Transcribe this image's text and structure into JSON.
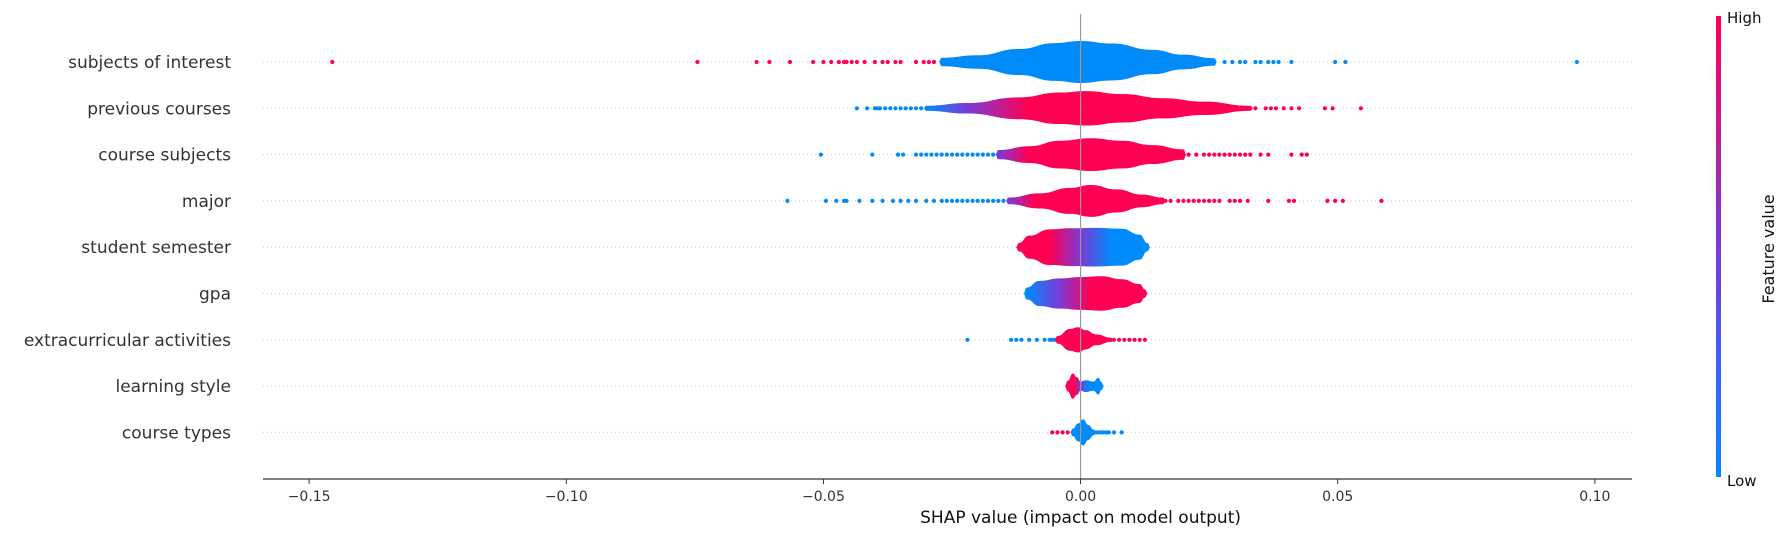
{
  "colors": {
    "low": "#008bfb",
    "mid": "#7b3ad6",
    "high": "#ff0052",
    "axis": "#333333",
    "zero_line": "#999999",
    "row_line": "#cccccc"
  },
  "chart_data": {
    "type": "violin",
    "xlabel": "SHAP value (impact on model output)",
    "xlim": [
      -0.158,
      0.108
    ],
    "xticks": [
      -0.15,
      -0.1,
      -0.05,
      0.0,
      0.05,
      0.1
    ],
    "xtick_labels": [
      "−0.15",
      "−0.10",
      "−0.05",
      "0.00",
      "0.05",
      "0.10"
    ],
    "colorbar": {
      "title": "Feature value",
      "high_label": "High",
      "low_label": "Low"
    },
    "features": [
      {
        "name": "subjects of interest",
        "profile": [
          [
            -0.027,
            0.2
          ],
          [
            -0.02,
            0.32
          ],
          [
            -0.012,
            0.62
          ],
          [
            -0.005,
            0.9
          ],
          [
            0.0,
            1.0
          ],
          [
            0.006,
            0.88
          ],
          [
            0.014,
            0.58
          ],
          [
            0.02,
            0.35
          ],
          [
            0.026,
            0.18
          ]
        ],
        "colors": [
          [
            -0.027,
            "low"
          ],
          [
            0.026,
            "low"
          ]
        ],
        "outliers": [
          [
            -0.1455,
            "high"
          ],
          [
            -0.0745,
            "high"
          ],
          [
            -0.063,
            "high"
          ],
          [
            -0.0605,
            "high"
          ],
          [
            -0.0565,
            "high"
          ],
          [
            -0.052,
            "high"
          ],
          [
            -0.05,
            "high"
          ],
          [
            -0.0485,
            "high"
          ],
          [
            -0.047,
            "high"
          ],
          [
            -0.046,
            "high"
          ],
          [
            -0.0455,
            "high"
          ],
          [
            -0.0445,
            "high"
          ],
          [
            -0.0435,
            "high"
          ],
          [
            -0.042,
            "high"
          ],
          [
            -0.04,
            "high"
          ],
          [
            -0.0385,
            "high"
          ],
          [
            -0.0375,
            "high"
          ],
          [
            -0.036,
            "high"
          ],
          [
            -0.035,
            "high"
          ],
          [
            -0.032,
            "high"
          ],
          [
            -0.0305,
            "high"
          ],
          [
            -0.0295,
            "high"
          ],
          [
            -0.0285,
            "high"
          ],
          [
            0.028,
            "low"
          ],
          [
            0.0295,
            "low"
          ],
          [
            0.031,
            "low"
          ],
          [
            0.032,
            "low"
          ],
          [
            0.034,
            "low"
          ],
          [
            0.035,
            "low"
          ],
          [
            0.0365,
            "low"
          ],
          [
            0.0375,
            "low"
          ],
          [
            0.0385,
            "low"
          ],
          [
            0.041,
            "low"
          ],
          [
            0.0495,
            "low"
          ],
          [
            0.0515,
            "low"
          ],
          [
            0.0965,
            "low"
          ]
        ]
      },
      {
        "name": "previous courses",
        "profile": [
          [
            -0.03,
            0.12
          ],
          [
            -0.022,
            0.25
          ],
          [
            -0.012,
            0.52
          ],
          [
            -0.004,
            0.75
          ],
          [
            0.001,
            0.82
          ],
          [
            0.008,
            0.68
          ],
          [
            0.016,
            0.48
          ],
          [
            0.024,
            0.32
          ],
          [
            0.033,
            0.12
          ]
        ],
        "colors": [
          [
            -0.03,
            "low"
          ],
          [
            -0.022,
            "mid"
          ],
          [
            -0.01,
            "high"
          ],
          [
            0.033,
            "high"
          ]
        ],
        "outliers": [
          [
            -0.0435,
            "low"
          ],
          [
            -0.0415,
            "low"
          ],
          [
            -0.04,
            "low"
          ],
          [
            -0.0395,
            "low"
          ],
          [
            -0.039,
            "low"
          ],
          [
            -0.038,
            "low"
          ],
          [
            -0.037,
            "low"
          ],
          [
            -0.036,
            "low"
          ],
          [
            -0.035,
            "low"
          ],
          [
            -0.034,
            "low"
          ],
          [
            -0.033,
            "low"
          ],
          [
            -0.032,
            "low"
          ],
          [
            -0.031,
            "low"
          ],
          [
            0.034,
            "high"
          ],
          [
            0.036,
            "high"
          ],
          [
            0.037,
            "high"
          ],
          [
            0.038,
            "high"
          ],
          [
            0.0395,
            "high"
          ],
          [
            0.041,
            "high"
          ],
          [
            0.0425,
            "high"
          ],
          [
            0.0475,
            "high"
          ],
          [
            0.049,
            "high"
          ],
          [
            0.0545,
            "high"
          ]
        ]
      },
      {
        "name": "course subjects",
        "profile": [
          [
            -0.016,
            0.22
          ],
          [
            -0.01,
            0.4
          ],
          [
            -0.004,
            0.66
          ],
          [
            0.002,
            0.78
          ],
          [
            0.008,
            0.66
          ],
          [
            0.014,
            0.45
          ],
          [
            0.02,
            0.25
          ]
        ],
        "colors": [
          [
            -0.016,
            "mid"
          ],
          [
            -0.01,
            "high"
          ],
          [
            0.02,
            "high"
          ]
        ],
        "outliers": [
          [
            -0.0505,
            "low"
          ],
          [
            -0.0405,
            "low"
          ],
          [
            -0.0355,
            "low"
          ],
          [
            -0.0345,
            "low"
          ],
          [
            -0.032,
            "low"
          ],
          [
            -0.031,
            "low"
          ],
          [
            -0.03,
            "low"
          ],
          [
            -0.029,
            "low"
          ],
          [
            -0.028,
            "low"
          ],
          [
            -0.027,
            "low"
          ],
          [
            -0.026,
            "low"
          ],
          [
            -0.025,
            "low"
          ],
          [
            -0.024,
            "low"
          ],
          [
            -0.023,
            "low"
          ],
          [
            -0.022,
            "low"
          ],
          [
            -0.021,
            "low"
          ],
          [
            -0.02,
            "low"
          ],
          [
            -0.019,
            "low"
          ],
          [
            -0.018,
            "low"
          ],
          [
            -0.017,
            "low"
          ],
          [
            0.021,
            "high"
          ],
          [
            0.0225,
            "high"
          ],
          [
            0.024,
            "high"
          ],
          [
            0.025,
            "high"
          ],
          [
            0.026,
            "high"
          ],
          [
            0.027,
            "high"
          ],
          [
            0.028,
            "high"
          ],
          [
            0.029,
            "high"
          ],
          [
            0.03,
            "high"
          ],
          [
            0.031,
            "high"
          ],
          [
            0.032,
            "high"
          ],
          [
            0.033,
            "high"
          ],
          [
            0.035,
            "high"
          ],
          [
            0.0365,
            "high"
          ],
          [
            0.041,
            "high"
          ],
          [
            0.043,
            "high"
          ],
          [
            0.044,
            "high"
          ]
        ]
      },
      {
        "name": "major",
        "profile": [
          [
            -0.014,
            0.16
          ],
          [
            -0.008,
            0.36
          ],
          [
            -0.002,
            0.62
          ],
          [
            0.002,
            0.76
          ],
          [
            0.007,
            0.55
          ],
          [
            0.012,
            0.3
          ],
          [
            0.016,
            0.16
          ]
        ],
        "colors": [
          [
            -0.014,
            "mid"
          ],
          [
            -0.009,
            "high"
          ],
          [
            0.016,
            "high"
          ]
        ],
        "outliers": [
          [
            -0.057,
            "low"
          ],
          [
            -0.0495,
            "low"
          ],
          [
            -0.0475,
            "low"
          ],
          [
            -0.046,
            "low"
          ],
          [
            -0.0455,
            "low"
          ],
          [
            -0.043,
            "low"
          ],
          [
            -0.0405,
            "low"
          ],
          [
            -0.0385,
            "low"
          ],
          [
            -0.0365,
            "low"
          ],
          [
            -0.035,
            "low"
          ],
          [
            -0.0335,
            "low"
          ],
          [
            -0.032,
            "low"
          ],
          [
            -0.03,
            "low"
          ],
          [
            -0.0285,
            "low"
          ],
          [
            -0.027,
            "low"
          ],
          [
            -0.026,
            "low"
          ],
          [
            -0.025,
            "low"
          ],
          [
            -0.024,
            "low"
          ],
          [
            -0.023,
            "low"
          ],
          [
            -0.022,
            "low"
          ],
          [
            -0.021,
            "low"
          ],
          [
            -0.02,
            "low"
          ],
          [
            -0.019,
            "low"
          ],
          [
            -0.018,
            "low"
          ],
          [
            -0.017,
            "low"
          ],
          [
            -0.016,
            "low"
          ],
          [
            -0.015,
            "low"
          ],
          [
            0.0165,
            "high"
          ],
          [
            0.0175,
            "high"
          ],
          [
            0.019,
            "high"
          ],
          [
            0.02,
            "high"
          ],
          [
            0.021,
            "high"
          ],
          [
            0.022,
            "high"
          ],
          [
            0.023,
            "high"
          ],
          [
            0.024,
            "high"
          ],
          [
            0.025,
            "high"
          ],
          [
            0.026,
            "high"
          ],
          [
            0.027,
            "high"
          ],
          [
            0.029,
            "high"
          ],
          [
            0.03,
            "high"
          ],
          [
            0.031,
            "high"
          ],
          [
            0.0325,
            "high"
          ],
          [
            0.0365,
            "high"
          ],
          [
            0.0405,
            "high"
          ],
          [
            0.0415,
            "high"
          ],
          [
            0.048,
            "high"
          ],
          [
            0.0495,
            "high"
          ],
          [
            0.051,
            "high"
          ],
          [
            0.0585,
            "high"
          ]
        ]
      },
      {
        "name": "student semester",
        "profile": [
          [
            -0.012,
            0.2
          ],
          [
            -0.01,
            0.55
          ],
          [
            -0.006,
            0.85
          ],
          [
            -0.002,
            0.9
          ],
          [
            0.003,
            0.92
          ],
          [
            0.008,
            0.88
          ],
          [
            0.0115,
            0.6
          ],
          [
            0.013,
            0.2
          ]
        ],
        "colors": [
          [
            -0.012,
            "high"
          ],
          [
            -0.006,
            "high"
          ],
          [
            0.0,
            "mid"
          ],
          [
            0.006,
            "low"
          ],
          [
            0.013,
            "low"
          ]
        ],
        "outliers": []
      },
      {
        "name": "gpa",
        "profile": [
          [
            -0.0105,
            0.28
          ],
          [
            -0.008,
            0.6
          ],
          [
            -0.004,
            0.72
          ],
          [
            0.0,
            0.78
          ],
          [
            0.004,
            0.82
          ],
          [
            0.008,
            0.68
          ],
          [
            0.0115,
            0.45
          ],
          [
            0.0125,
            0.2
          ]
        ],
        "colors": [
          [
            -0.0105,
            "low"
          ],
          [
            -0.004,
            "mid"
          ],
          [
            0.002,
            "high"
          ],
          [
            0.0125,
            "high"
          ]
        ],
        "outliers": []
      },
      {
        "name": "extracurricular activities",
        "profile": [
          [
            -0.0045,
            0.18
          ],
          [
            -0.002,
            0.52
          ],
          [
            -0.0005,
            0.6
          ],
          [
            0.001,
            0.46
          ],
          [
            0.003,
            0.26
          ],
          [
            0.006,
            0.1
          ]
        ],
        "colors": [
          [
            -0.0045,
            "high"
          ],
          [
            0.006,
            "high"
          ]
        ],
        "outliers": [
          [
            -0.022,
            "low"
          ],
          [
            -0.0135,
            "low"
          ],
          [
            -0.0125,
            "low"
          ],
          [
            -0.0115,
            "low"
          ],
          [
            -0.01,
            "low"
          ],
          [
            -0.0085,
            "low"
          ],
          [
            -0.007,
            "low"
          ],
          [
            -0.006,
            "low"
          ],
          [
            -0.0055,
            "low"
          ],
          [
            -0.005,
            "low"
          ],
          [
            0.0065,
            "high"
          ],
          [
            0.0075,
            "high"
          ],
          [
            0.0085,
            "high"
          ],
          [
            0.0095,
            "high"
          ],
          [
            0.0105,
            "high"
          ],
          [
            0.0115,
            "high"
          ],
          [
            0.0125,
            "high"
          ]
        ]
      },
      {
        "name": "learning style",
        "profile": [
          [
            -0.0025,
            0.25
          ],
          [
            -0.0015,
            0.6
          ],
          [
            -0.0007,
            0.42
          ],
          [
            0.0,
            0.22
          ],
          [
            0.001,
            0.28
          ],
          [
            0.0025,
            0.22
          ],
          [
            0.0035,
            0.4
          ],
          [
            0.004,
            0.2
          ]
        ],
        "colors": [
          [
            -0.0025,
            "high"
          ],
          [
            -0.0012,
            "high"
          ],
          [
            0.0,
            "mid"
          ],
          [
            0.0015,
            "low"
          ],
          [
            0.004,
            "low"
          ]
        ],
        "outliers": []
      },
      {
        "name": "course types",
        "profile": [
          [
            -0.0015,
            0.18
          ],
          [
            -0.0005,
            0.42
          ],
          [
            0.0005,
            0.62
          ],
          [
            0.0015,
            0.36
          ],
          [
            0.0025,
            0.14
          ]
        ],
        "colors": [
          [
            -0.0015,
            "low"
          ],
          [
            0.0025,
            "low"
          ]
        ],
        "outliers": [
          [
            -0.0055,
            "high"
          ],
          [
            -0.0045,
            "high"
          ],
          [
            -0.0035,
            "high"
          ],
          [
            -0.0025,
            "high"
          ],
          [
            0.003,
            "low"
          ],
          [
            0.0035,
            "low"
          ],
          [
            0.004,
            "low"
          ],
          [
            0.0045,
            "low"
          ],
          [
            0.005,
            "low"
          ],
          [
            0.0055,
            "low"
          ],
          [
            0.0065,
            "low"
          ],
          [
            0.008,
            "low"
          ]
        ]
      }
    ]
  }
}
